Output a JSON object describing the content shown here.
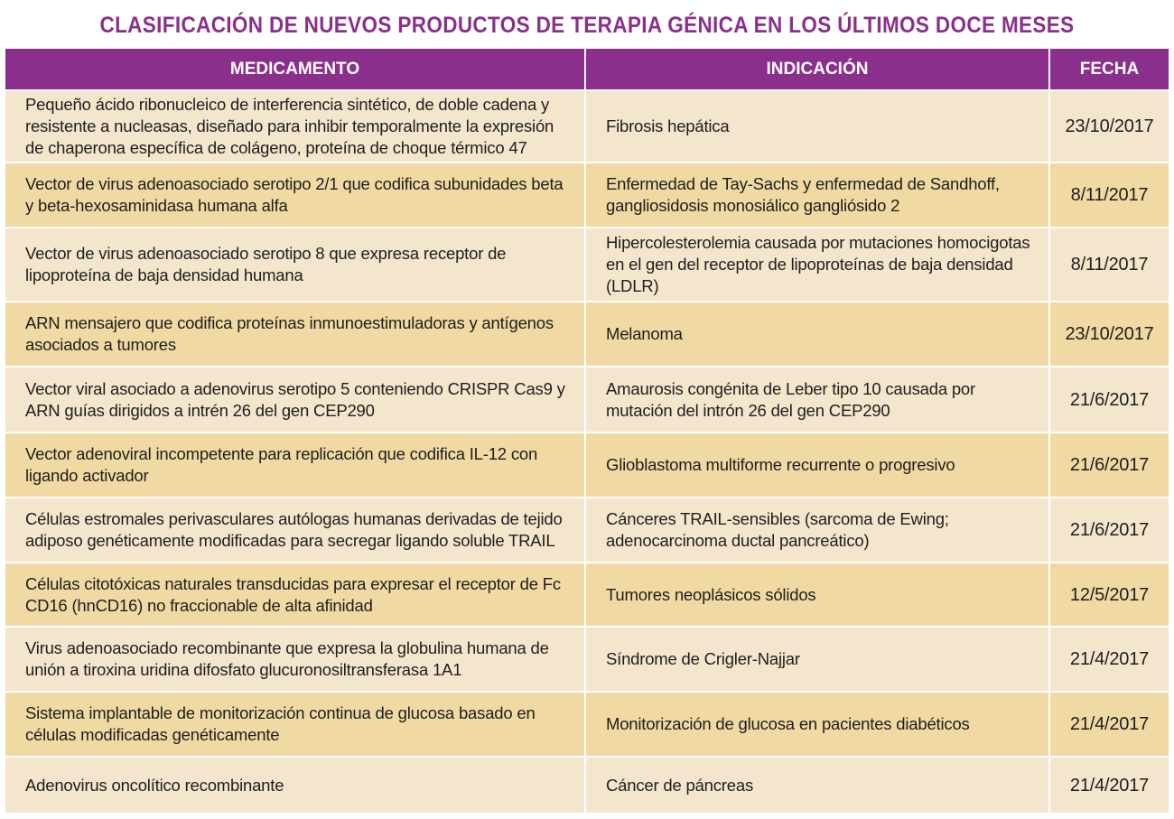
{
  "title": "CLASIFICACIÓN DE NUEVOS PRODUCTOS DE TERAPIA GÉNICA EN LOS ÚLTIMOS DOCE MESES",
  "headers": {
    "medicamento": "MEDICAMENTO",
    "indicacion": "INDICACIÓN",
    "fecha": "FECHA"
  },
  "rows": [
    {
      "medicamento": "Pequeño ácido ribonucleico de interferencia sintético, de doble cadena y resistente a nucleasas, diseñado para inhibir temporalmente la expresión de chaperona específica de colágeno, proteína de choque térmico 47",
      "indicacion": "Fibrosis hepática",
      "fecha": "23/10/2017"
    },
    {
      "medicamento": "Vector de virus adenoasociado serotipo 2/1 que codifica subunidades beta y beta-hexosaminidasa humana alfa",
      "indicacion": "Enfermedad de Tay-Sachs y enfermedad de Sandhoff, gangliosidosis monosiálico gangliósido 2",
      "fecha": "8/11/2017"
    },
    {
      "medicamento": "Vector de virus adenoasociado serotipo 8 que expresa receptor de lipoproteína de baja densidad humana",
      "indicacion": "Hipercolesterolemia causada por mutaciones homocigotas en el gen del receptor de lipoproteínas de baja densidad (LDLR)",
      "fecha": "8/11/2017"
    },
    {
      "medicamento": "ARN mensajero que codifica proteínas inmunoestimuladoras y antígenos asociados a tumores",
      "indicacion": "Melanoma",
      "fecha": "23/10/2017"
    },
    {
      "medicamento": "Vector viral asociado a adenovirus serotipo 5 conteniendo CRISPR Cas9 y ARN guías dirigidos a intrén 26 del gen CEP290",
      "indicacion": "Amaurosis congénita de Leber tipo 10 causada por mutación del intrón 26 del gen CEP290",
      "fecha": "21/6/2017"
    },
    {
      "medicamento": "Vector adenoviral incompetente para replicación que codifica IL-12 con ligando activador",
      "indicacion": "Glioblastoma multiforme recurrente o progresivo",
      "fecha": "21/6/2017"
    },
    {
      "medicamento": "Células estromales perivasculares autólogas humanas derivadas de tejido adiposo genéticamente modificadas para secregar ligando soluble TRAIL",
      "indicacion": "Cánceres TRAIL-sensibles (sarcoma de Ewing; adenocarcinoma ductal pancreático)",
      "fecha": "21/6/2017"
    },
    {
      "medicamento": "Células citotóxicas naturales transducidas para expresar el receptor de Fc CD16 (hnCD16) no fraccionable de alta afinidad",
      "indicacion": "Tumores neoplásicos sólidos",
      "fecha": "12/5/2017"
    },
    {
      "medicamento": "Virus adenoasociado recombinante que expresa la globulina humana de unión a tiroxina uridina difosfato glucuronosiltransferasa 1A1",
      "indicacion": "Síndrome de Crigler-Najjar",
      "fecha": "21/4/2017"
    },
    {
      "medicamento": "Sistema implantable de monitorización continua de glucosa basado en células modificadas genéticamente",
      "indicacion": "Monitorización de glucosa en pacientes diabéticos",
      "fecha": "21/4/2017"
    },
    {
      "medicamento": "Adenovirus oncolítico recombinante",
      "indicacion": "Cáncer de páncreas",
      "fecha": "21/4/2017"
    }
  ]
}
